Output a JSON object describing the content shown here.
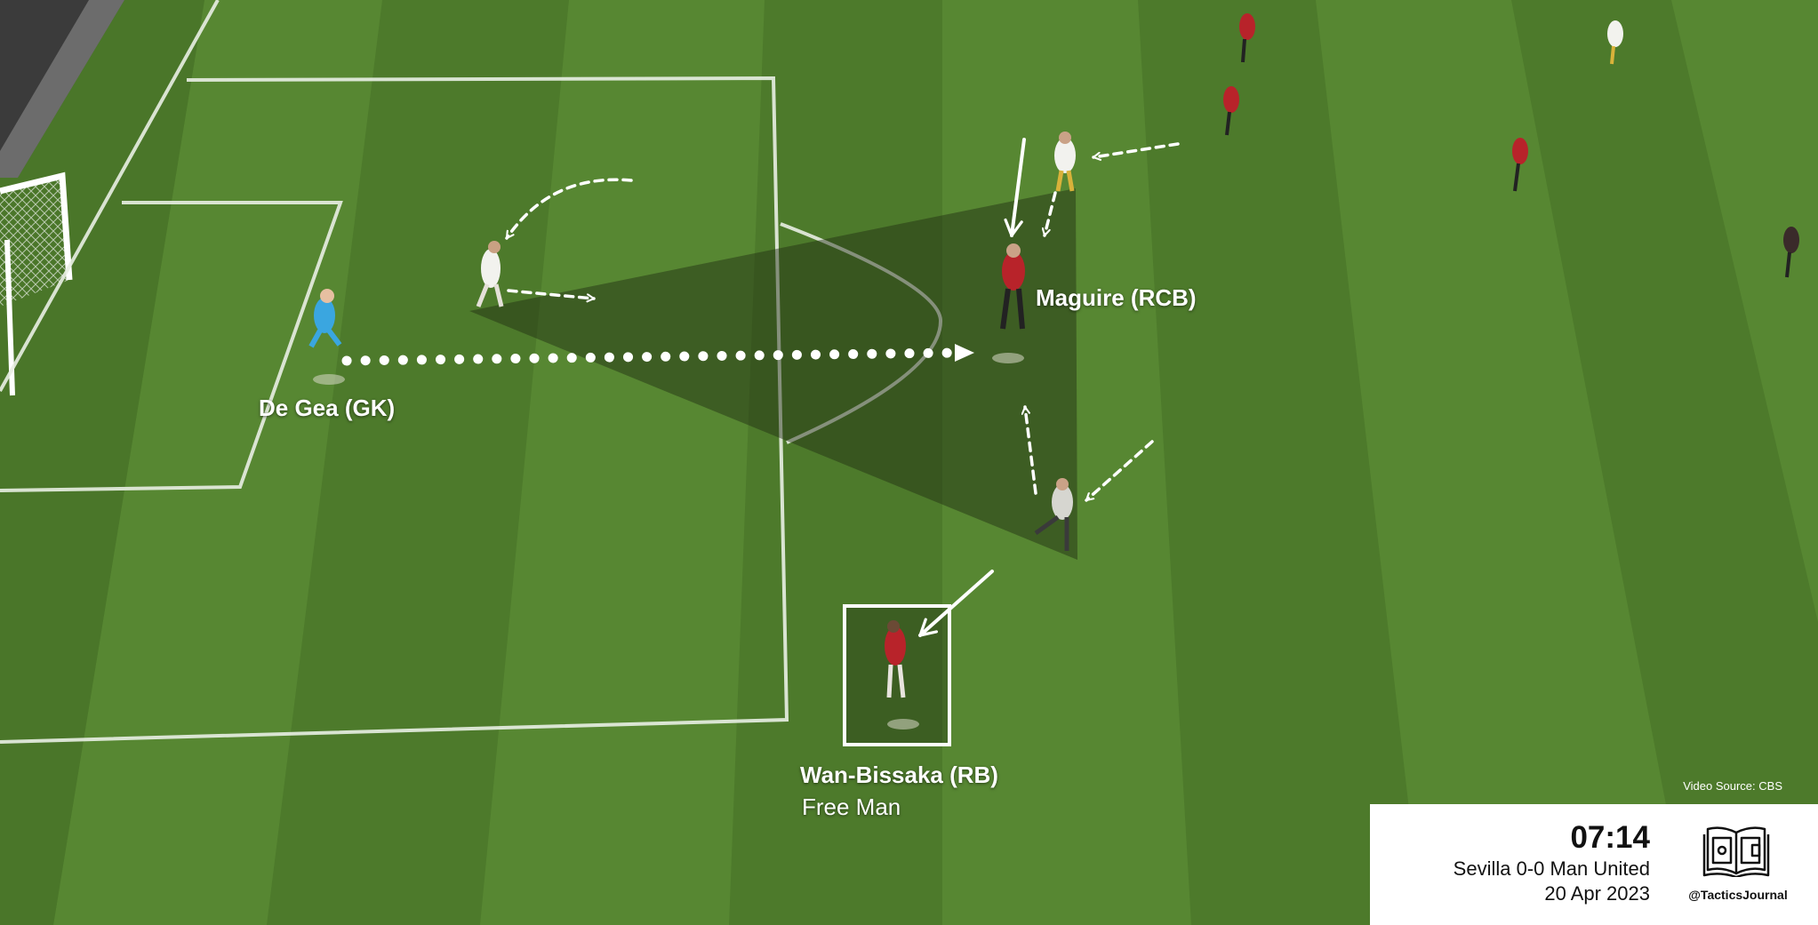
{
  "labels": {
    "degea": "De Gea (GK)",
    "maguire": "Maguire (RCB)",
    "wanbissaka": "Wan-Bissaka (RB)",
    "free_man": "Free Man"
  },
  "source": "Video Source: CBS",
  "match": {
    "time": "07:14",
    "fixture": "Sevilla 0-0 Man United",
    "date": "20 Apr 2023",
    "handle": "@TacticsJournal"
  },
  "colors": {
    "pitch": "#4f7d2c",
    "pitch_stripe": "#5a8a33",
    "united_red": "#b8232a",
    "sevilla_white": "#f2f2ee",
    "keeper_blue": "#3aa6e0",
    "annotation": "#ffffff"
  },
  "icons": {
    "logo": "open-book-pitch-icon"
  }
}
